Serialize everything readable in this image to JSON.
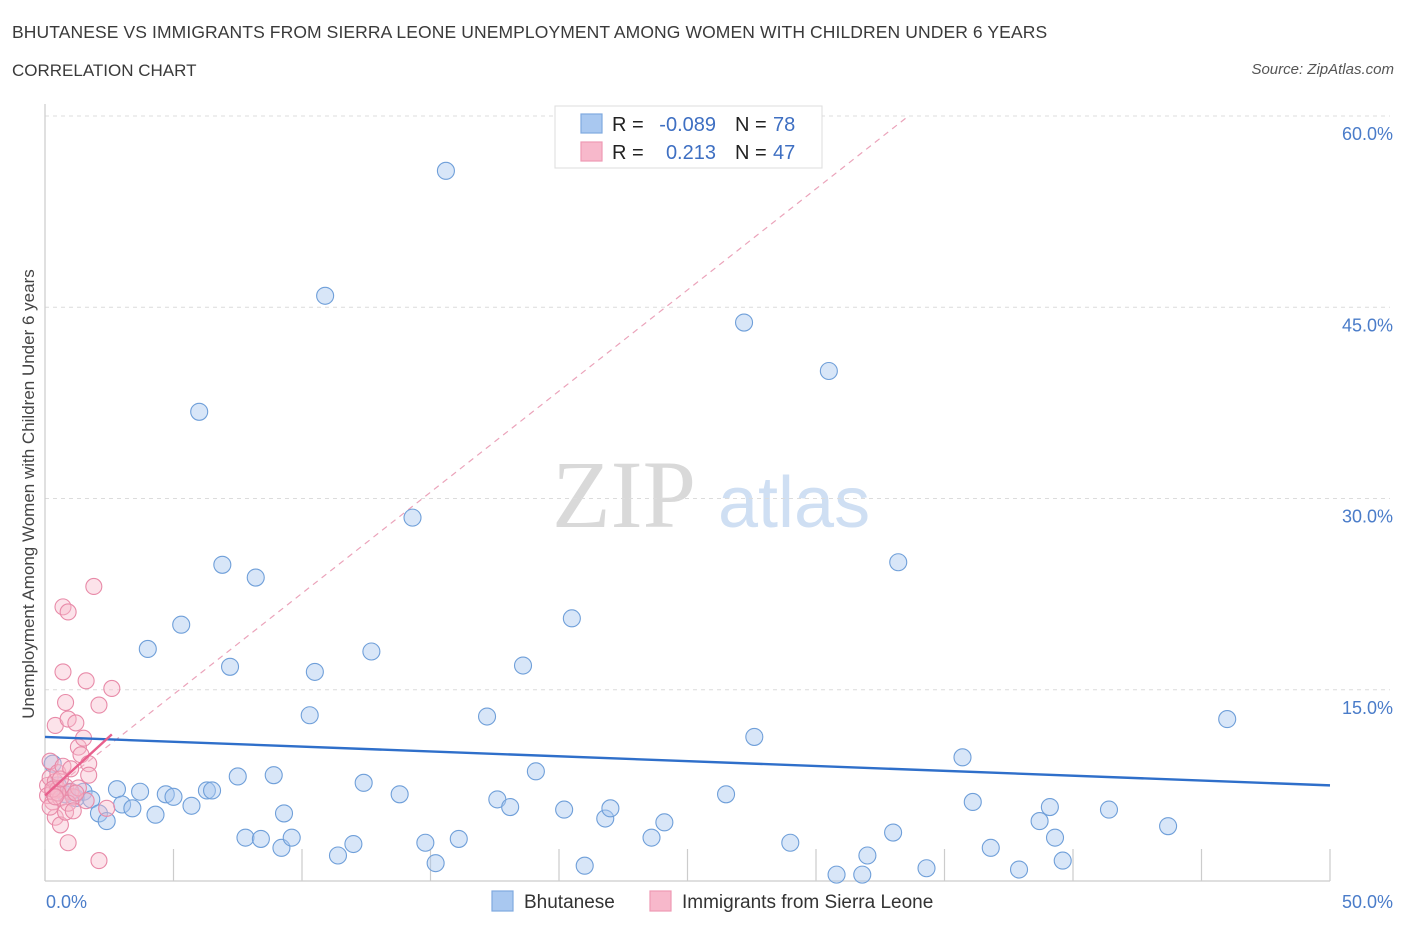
{
  "header": {
    "title": "BHUTANESE VS IMMIGRANTS FROM SIERRA LEONE UNEMPLOYMENT AMONG WOMEN WITH CHILDREN UNDER 6 YEARS",
    "subtitle": "CORRELATION CHART",
    "source": "Source: ZipAtlas.com"
  },
  "watermark": {
    "zip": "ZIP",
    "atlas": "atlas"
  },
  "legend": {
    "rows": [
      {
        "r_label": "R =",
        "r_value": "-0.089",
        "n_label": "N =",
        "n_value": "78",
        "color": "#a9c8f0"
      },
      {
        "r_label": "R =",
        "r_value": "0.213",
        "n_label": "N =",
        "n_value": "47",
        "color": "#f7b8cb"
      }
    ]
  },
  "bottom_legend": [
    {
      "label": "Bhutanese",
      "color": "#a9c8f0"
    },
    {
      "label": "Immigrants from Sierra Leone",
      "color": "#f7b8cb"
    }
  ],
  "chart_data": {
    "type": "scatter",
    "title": "BHUTANESE VS IMMIGRANTS FROM SIERRA LEONE UNEMPLOYMENT AMONG WOMEN WITH CHILDREN UNDER 6 YEARS",
    "subtitle": "CORRELATION CHART",
    "xlabel": "",
    "ylabel": "Unemployment Among Women with Children Under 6 years",
    "xlim": [
      0,
      50
    ],
    "ylim": [
      0,
      60
    ],
    "x_tick_labels": [
      "0.0%",
      "50.0%"
    ],
    "y_tick_labels": [
      "15.0%",
      "30.0%",
      "45.0%",
      "60.0%"
    ],
    "y_ticks": [
      15,
      30,
      45,
      60
    ],
    "grid": "horizontal dashed",
    "legend_position": "top-center",
    "colors": {
      "bhutanese": "#a9c8f0",
      "bhutanese_line": "#2f6fca",
      "sierra_leone": "#f7b8cb",
      "sierra_leone_line": "#e8608d"
    },
    "series": [
      {
        "name": "Bhutanese",
        "r": -0.089,
        "n": 78,
        "trend": {
          "x": [
            0,
            50
          ],
          "y": [
            11.3,
            7.5
          ]
        },
        "points": [
          [
            0.3,
            9.2
          ],
          [
            0.5,
            7.5
          ],
          [
            0.8,
            6.8
          ],
          [
            1.0,
            7.0
          ],
          [
            1.2,
            6.5
          ],
          [
            1.5,
            7.0
          ],
          [
            1.8,
            6.4
          ],
          [
            2.1,
            5.3
          ],
          [
            2.4,
            4.7
          ],
          [
            2.8,
            7.2
          ],
          [
            3.0,
            6.0
          ],
          [
            3.4,
            5.7
          ],
          [
            3.7,
            7.0
          ],
          [
            4.0,
            18.2
          ],
          [
            4.3,
            5.2
          ],
          [
            4.7,
            6.8
          ],
          [
            5.0,
            6.6
          ],
          [
            5.3,
            20.1
          ],
          [
            5.7,
            5.9
          ],
          [
            6.0,
            36.8
          ],
          [
            6.3,
            7.1
          ],
          [
            6.5,
            7.1
          ],
          [
            6.9,
            24.8
          ],
          [
            7.2,
            16.8
          ],
          [
            7.5,
            8.2
          ],
          [
            7.8,
            3.4
          ],
          [
            8.2,
            23.8
          ],
          [
            8.4,
            3.3
          ],
          [
            8.9,
            8.3
          ],
          [
            9.2,
            2.6
          ],
          [
            9.3,
            5.3
          ],
          [
            9.6,
            3.4
          ],
          [
            10.5,
            16.4
          ],
          [
            10.3,
            13.0
          ],
          [
            10.9,
            45.9
          ],
          [
            11.4,
            2.0
          ],
          [
            12.0,
            2.9
          ],
          [
            12.4,
            7.7
          ],
          [
            12.7,
            18.0
          ],
          [
            13.8,
            6.8
          ],
          [
            14.3,
            28.5
          ],
          [
            14.8,
            3.0
          ],
          [
            15.2,
            1.4
          ],
          [
            15.6,
            55.7
          ],
          [
            16.1,
            3.3
          ],
          [
            17.2,
            12.9
          ],
          [
            17.6,
            6.4
          ],
          [
            18.1,
            5.8
          ],
          [
            18.6,
            16.9
          ],
          [
            19.1,
            8.6
          ],
          [
            20.2,
            5.6
          ],
          [
            20.5,
            20.6
          ],
          [
            21.0,
            1.2
          ],
          [
            21.8,
            4.9
          ],
          [
            22.0,
            5.7
          ],
          [
            23.6,
            3.4
          ],
          [
            24.1,
            4.6
          ],
          [
            26.5,
            6.8
          ],
          [
            27.2,
            43.8
          ],
          [
            27.6,
            11.3
          ],
          [
            29.0,
            3.0
          ],
          [
            30.5,
            40.0
          ],
          [
            30.8,
            0.5
          ],
          [
            31.8,
            0.5
          ],
          [
            32.0,
            2.0
          ],
          [
            33.2,
            25.0
          ],
          [
            33.0,
            3.8
          ],
          [
            34.3,
            1.0
          ],
          [
            35.7,
            9.7
          ],
          [
            36.1,
            6.2
          ],
          [
            36.8,
            2.6
          ],
          [
            37.9,
            0.9
          ],
          [
            38.7,
            4.7
          ],
          [
            39.1,
            5.8
          ],
          [
            39.3,
            3.4
          ],
          [
            39.6,
            1.6
          ],
          [
            41.4,
            5.6
          ],
          [
            43.7,
            4.3
          ],
          [
            46.0,
            12.7
          ]
        ]
      },
      {
        "name": "Immigrants from Sierra Leone",
        "r": 0.213,
        "n": 47,
        "trend": {
          "x": [
            0,
            2.6
          ],
          "y": [
            6.7,
            11.5
          ]
        },
        "trend_extended": {
          "x": [
            0,
            33.6
          ],
          "y": [
            6.7,
            60
          ]
        },
        "points": [
          [
            0.1,
            7.5
          ],
          [
            0.1,
            6.7
          ],
          [
            0.2,
            8.1
          ],
          [
            0.2,
            9.4
          ],
          [
            0.3,
            7.0
          ],
          [
            0.3,
            6.2
          ],
          [
            0.4,
            7.8
          ],
          [
            0.4,
            5.0
          ],
          [
            0.4,
            12.2
          ],
          [
            0.5,
            8.5
          ],
          [
            0.5,
            7.2
          ],
          [
            0.6,
            6.5
          ],
          [
            0.6,
            4.4
          ],
          [
            0.7,
            9.0
          ],
          [
            0.7,
            21.5
          ],
          [
            0.7,
            16.4
          ],
          [
            0.8,
            14.0
          ],
          [
            0.8,
            7.4
          ],
          [
            0.8,
            5.4
          ],
          [
            0.9,
            21.1
          ],
          [
            0.9,
            12.7
          ],
          [
            0.9,
            3.0
          ],
          [
            1.0,
            8.8
          ],
          [
            1.0,
            7.0
          ],
          [
            1.1,
            6.6
          ],
          [
            1.2,
            12.4
          ],
          [
            1.3,
            10.5
          ],
          [
            1.3,
            7.3
          ],
          [
            1.4,
            9.9
          ],
          [
            1.5,
            11.2
          ],
          [
            1.6,
            15.7
          ],
          [
            1.6,
            6.3
          ],
          [
            1.7,
            9.2
          ],
          [
            1.7,
            8.3
          ],
          [
            1.9,
            23.1
          ],
          [
            2.1,
            13.8
          ],
          [
            2.1,
            1.6
          ],
          [
            2.4,
            5.7
          ],
          [
            2.6,
            15.1
          ],
          [
            0.2,
            5.8
          ],
          [
            0.3,
            7.2
          ],
          [
            0.5,
            6.9
          ],
          [
            0.6,
            8.0
          ],
          [
            0.9,
            6.1
          ],
          [
            1.1,
            5.5
          ],
          [
            1.2,
            6.9
          ],
          [
            0.4,
            6.6
          ]
        ]
      }
    ]
  }
}
